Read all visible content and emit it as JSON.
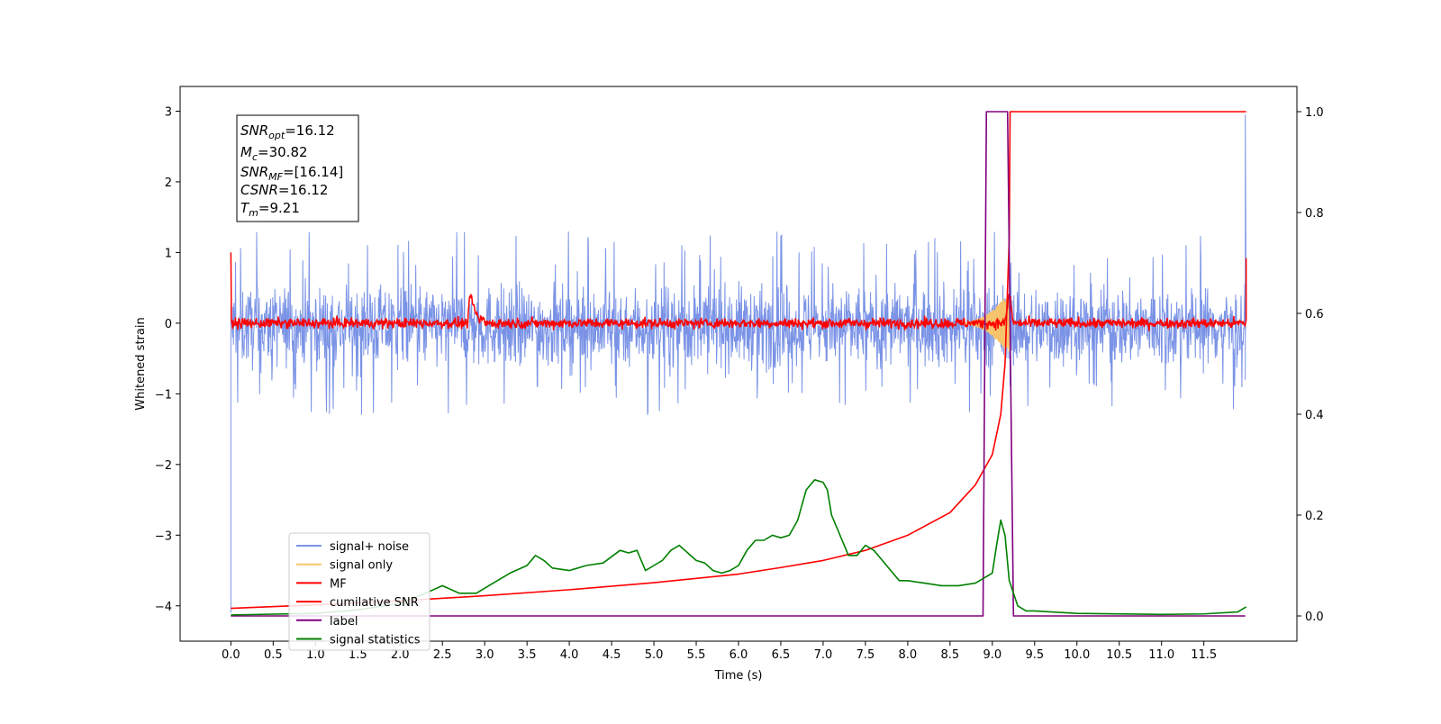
{
  "chart_data": {
    "type": "line",
    "xlabel": "Time (s)",
    "ylabel": "Whitened strain",
    "xlim": [
      -0.6,
      12.6
    ],
    "ylim": [
      -4.5,
      3.35
    ],
    "y2lim": [
      -0.05,
      1.05
    ],
    "xticks": [
      0.0,
      0.5,
      1.0,
      1.5,
      2.0,
      2.5,
      3.0,
      3.5,
      4.0,
      4.5,
      5.0,
      5.5,
      6.0,
      6.5,
      7.0,
      7.5,
      8.0,
      8.5,
      9.0,
      9.5,
      10.0,
      10.5,
      11.0,
      11.5
    ],
    "xtick_labels": [
      "0.0",
      "0.5",
      "1.0",
      "1.5",
      "2.0",
      "2.5",
      "3.0",
      "3.5",
      "4.0",
      "4.5",
      "5.0",
      "5.5",
      "6.0",
      "6.5",
      "7.0",
      "7.5",
      "8.0",
      "8.5",
      "9.0",
      "9.5",
      "10.0",
      "10.5",
      "11.0",
      "11.5"
    ],
    "yticks": [
      3,
      2,
      1,
      0,
      -1,
      -2,
      -3,
      -4
    ],
    "ytick_labels": [
      "3",
      "2",
      "1",
      "0",
      "−1",
      "−2",
      "−3",
      "−4"
    ],
    "y2ticks": [
      1.0,
      0.8,
      0.6,
      0.4,
      0.2,
      0.0
    ],
    "y2tick_labels": [
      "1.0",
      "0.8",
      "0.6",
      "0.4",
      "0.2",
      "0.0"
    ],
    "grid": false,
    "legend_placement": "lower-left",
    "info_box": {
      "line1_sym": "SNR",
      "line1_sub": "opt",
      "line1_val": "=16.12",
      "line2_sym": "M",
      "line2_sub": "c",
      "line2_val": "=30.82",
      "line3_sym": "SNR",
      "line3_sub": "MF",
      "line3_val": "=[16.14]",
      "line4_sym": "CSNR",
      "line4_val": "=16.12",
      "line5_sym": "T",
      "line5_sub": "m",
      "line5_val": "=9.21"
    },
    "series": [
      {
        "name": "signal+ noise",
        "axis": "left",
        "color": "#7a93e6",
        "noise_envelope": {
          "x_start": 0.0,
          "x_end": 12.0,
          "typical_min": -0.8,
          "typical_max": 0.8,
          "extreme_min": -1.4,
          "extreme_max": 1.35
        },
        "start_spike": {
          "x": 0.0,
          "values": [
            -1.8,
            -4.1
          ]
        },
        "end_spike": {
          "x": 11.99,
          "values": [
            2.95,
            -0.8
          ]
        }
      },
      {
        "name": "signal only",
        "axis": "left",
        "color": "#f5c46c",
        "chirp": {
          "x_start": 8.6,
          "x_peak": 9.2,
          "amplitude_peak": 0.45
        }
      },
      {
        "name": "MF",
        "axis": "left",
        "color": "#ff0000",
        "baseline": 0.0,
        "noise_amplitude": 0.08,
        "features": [
          {
            "x": 0.0,
            "y": 1.0
          },
          {
            "x": 2.82,
            "y": 0.38
          },
          {
            "x": 9.2,
            "y": 0.45
          },
          {
            "x": 12.0,
            "y": 0.92
          }
        ]
      },
      {
        "name": "cumilative SNR",
        "axis": "right",
        "color": "#ff0000",
        "x": [
          0.0,
          1.0,
          2.0,
          3.0,
          4.0,
          5.0,
          6.0,
          6.5,
          7.0,
          7.5,
          8.0,
          8.5,
          8.8,
          9.0,
          9.1,
          9.15,
          9.2,
          9.21,
          12.0
        ],
        "y": [
          0.015,
          0.022,
          0.03,
          0.04,
          0.052,
          0.066,
          0.083,
          0.096,
          0.11,
          0.13,
          0.16,
          0.205,
          0.26,
          0.32,
          0.4,
          0.5,
          0.75,
          1.0,
          1.0
        ]
      },
      {
        "name": "label",
        "axis": "right",
        "color": "#800080",
        "x": [
          0.0,
          8.89,
          8.93,
          9.18,
          9.25,
          11.99
        ],
        "y": [
          0.0,
          0.0,
          1.0,
          1.0,
          0.0,
          0.0
        ]
      },
      {
        "name": "signal statistics",
        "axis": "right",
        "color": "#008000",
        "x": [
          0.0,
          1.0,
          1.5,
          2.0,
          2.3,
          2.5,
          2.7,
          2.9,
          3.1,
          3.3,
          3.5,
          3.6,
          3.7,
          3.8,
          4.0,
          4.2,
          4.4,
          4.6,
          4.7,
          4.8,
          4.9,
          5.0,
          5.1,
          5.2,
          5.3,
          5.4,
          5.5,
          5.6,
          5.7,
          5.8,
          5.9,
          6.0,
          6.1,
          6.2,
          6.3,
          6.4,
          6.5,
          6.6,
          6.7,
          6.8,
          6.9,
          7.0,
          7.05,
          7.1,
          7.2,
          7.3,
          7.4,
          7.5,
          7.6,
          7.7,
          7.8,
          7.9,
          8.0,
          8.2,
          8.4,
          8.6,
          8.8,
          9.0,
          9.05,
          9.1,
          9.15,
          9.2,
          9.3,
          9.4,
          9.5,
          10.0,
          11.0,
          11.5,
          11.9,
          12.0
        ],
        "y": [
          0.002,
          0.005,
          0.012,
          0.025,
          0.045,
          0.06,
          0.045,
          0.045,
          0.065,
          0.085,
          0.1,
          0.12,
          0.11,
          0.095,
          0.09,
          0.1,
          0.105,
          0.13,
          0.125,
          0.13,
          0.09,
          0.1,
          0.11,
          0.13,
          0.14,
          0.125,
          0.11,
          0.105,
          0.09,
          0.085,
          0.09,
          0.1,
          0.13,
          0.15,
          0.15,
          0.16,
          0.155,
          0.16,
          0.19,
          0.25,
          0.27,
          0.265,
          0.25,
          0.2,
          0.16,
          0.12,
          0.12,
          0.14,
          0.13,
          0.11,
          0.09,
          0.07,
          0.07,
          0.065,
          0.06,
          0.06,
          0.065,
          0.085,
          0.14,
          0.19,
          0.16,
          0.07,
          0.02,
          0.01,
          0.01,
          0.005,
          0.003,
          0.004,
          0.008,
          0.018
        ]
      }
    ]
  }
}
